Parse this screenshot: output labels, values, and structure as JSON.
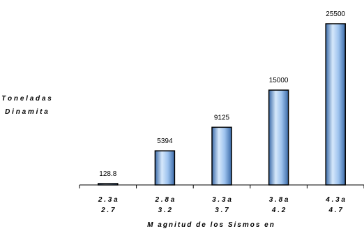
{
  "chart_data": {
    "type": "bar",
    "title": "",
    "xlabel": "M agnitud de los Sismos en",
    "ylabel": [
      "T o n e l a d a s",
      "D i n a m i t a"
    ],
    "categories": [
      [
        "2 . 3   a",
        "2 . 7"
      ],
      [
        "2 . 8   a",
        "3 . 2"
      ],
      [
        "3 . 3   a",
        "3 . 7"
      ],
      [
        "3 . 8   a",
        "4 . 2"
      ],
      [
        "4 . 3   a",
        "4 . 7"
      ]
    ],
    "values": [
      128.8,
      5394,
      9125,
      15000,
      25500
    ],
    "data_labels": [
      "128.8",
      "5394",
      "9125",
      "15000",
      "25500"
    ],
    "ylim": [
      0,
      25500
    ],
    "grid": false,
    "bar_color": "#9ec3ee",
    "bar_dark": "#3a6aa8",
    "bar_light": "#d6e8fb"
  }
}
